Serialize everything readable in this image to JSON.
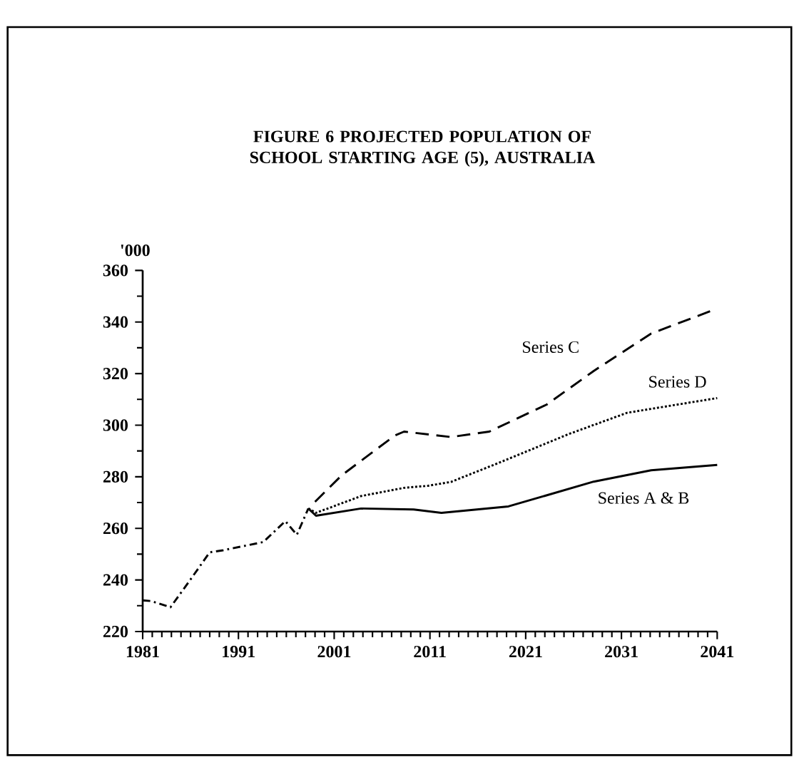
{
  "chart_data": {
    "type": "line",
    "title": "FIGURE 6 PROJECTED POPULATION OF SCHOOL STARTING AGE (5), AUSTRALIA",
    "ylabel": "'000",
    "xlim": [
      1981,
      2041
    ],
    "xticks": [
      1981,
      1991,
      2001,
      2011,
      2021,
      2031,
      2041
    ],
    "ylim": [
      220,
      360
    ],
    "yticks": [
      220,
      240,
      260,
      280,
      300,
      320,
      340,
      360
    ],
    "series": [
      {
        "color": "#000000",
        "line_style": "dashed",
        "x": [
          1981,
          1981.9,
          1983.9,
          1986.0,
          1988.0,
          1989.4,
          1993.6,
          1995.9,
          1997.1,
          1998.3
        ],
        "values": [
          232.1,
          231.8,
          229.4,
          240.2,
          250.7,
          251.5,
          254.7,
          262.8,
          257.5,
          267.7
        ]
      },
      {
        "name": "Series C",
        "color": "#000000",
        "line_style": "dashed",
        "x": [
          1999.0,
          2001.8,
          2007.3,
          2008.3,
          2013.2,
          2017.2,
          2023.2,
          2028.1,
          2034.1,
          2041
        ],
        "values": [
          270.3,
          280.6,
          295.9,
          297.5,
          295.4,
          297.5,
          308.0,
          321.0,
          335.5,
          345.2
        ]
      },
      {
        "name": "Series D",
        "color": "#000000",
        "line_style": "dotted",
        "x": [
          1998.3,
          1999.1,
          2003.8,
          2008.3,
          2010.8,
          2013.2,
          2018.2,
          2025.6,
          2031.6,
          2041
        ],
        "values": [
          267.7,
          266.0,
          272.5,
          275.7,
          276.5,
          278.0,
          285.4,
          296.7,
          304.8,
          310.5
        ]
      },
      {
        "name": "Series A & B",
        "color": "#000000",
        "line_style": "solid",
        "x": [
          1998.3,
          1999.1,
          2003.8,
          2009.3,
          2012.2,
          2019.2,
          2028.1,
          2034.1,
          2041
        ],
        "values": [
          267.7,
          264.9,
          267.7,
          267.3,
          266.0,
          268.5,
          278.1,
          282.5,
          284.6
        ]
      }
    ]
  }
}
